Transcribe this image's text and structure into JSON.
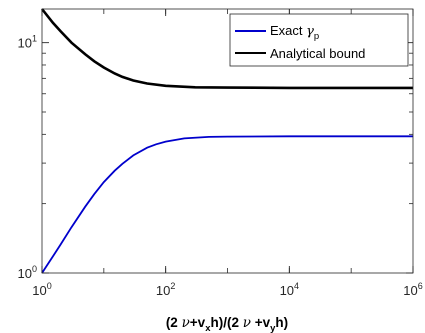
{
  "chart_data": {
    "type": "line",
    "x_scale": "log",
    "y_scale": "log",
    "xlim": [
      1,
      1000000
    ],
    "ylim": [
      1,
      14
    ],
    "x_ticks": [
      {
        "base": "10",
        "exp": "0"
      },
      {
        "base": "10",
        "exp": "2"
      },
      {
        "base": "10",
        "exp": "4"
      },
      {
        "base": "10",
        "exp": "6"
      }
    ],
    "y_ticks": [
      {
        "base": "10",
        "exp": "0"
      },
      {
        "base": "10",
        "exp": "1"
      }
    ],
    "xlabel": {
      "open": "(2 ",
      "nu1": "ν",
      "mid1": "+v",
      "sub_x": "x",
      "mid2": "h)/(2  ",
      "nu2": "ν",
      "mid3": " +v",
      "sub_y": "y",
      "close": "h)"
    },
    "legend": {
      "position": "top-right",
      "entries": [
        {
          "series_index": 0,
          "prefix": "Exact  ",
          "symbol": "γ",
          "subscript": "p"
        },
        {
          "series_index": 1,
          "text": "Analytical bound"
        }
      ]
    },
    "grid": false,
    "series": [
      {
        "color": "#0000cc",
        "x": [
          1,
          1.5,
          2,
          3,
          5,
          7,
          10,
          15,
          20,
          30,
          50,
          70,
          100,
          200,
          500,
          1000,
          10000,
          100000,
          1000000
        ],
        "y": [
          1.0,
          1.18,
          1.33,
          1.58,
          1.94,
          2.2,
          2.48,
          2.78,
          2.98,
          3.24,
          3.5,
          3.62,
          3.72,
          3.84,
          3.9,
          3.91,
          3.92,
          3.92,
          3.92
        ]
      },
      {
        "color": "#000000",
        "x": [
          1,
          1.5,
          2,
          3,
          5,
          7,
          10,
          15,
          20,
          30,
          50,
          100,
          300,
          1000,
          10000,
          100000,
          1000000
        ],
        "y": [
          14.0,
          12.2,
          11.2,
          10.0,
          8.9,
          8.3,
          7.8,
          7.35,
          7.1,
          6.85,
          6.65,
          6.5,
          6.4,
          6.38,
          6.36,
          6.36,
          6.36
        ]
      }
    ]
  }
}
